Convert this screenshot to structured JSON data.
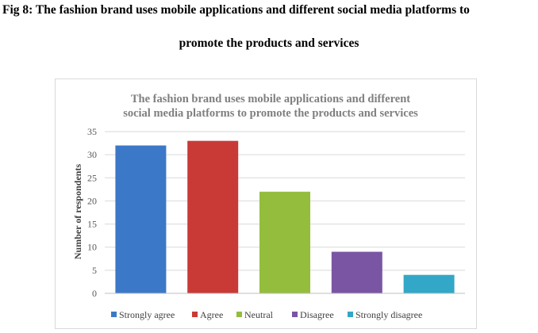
{
  "figure": {
    "caption_line1": "Fig 8: The fashion brand uses mobile applications and different social media platforms to",
    "caption_line2": "promote the products and services"
  },
  "chart_data": {
    "type": "bar",
    "title_line1": "The fashion brand uses mobile applications and different",
    "title_line2": "social media platforms to promote the products and services",
    "ylabel": "Number of respondents",
    "xlabel": "",
    "categories": [
      "Strongly agree",
      "Agree",
      "Neutral",
      "Disagree",
      "Strongly disagree"
    ],
    "values": [
      32,
      33,
      22,
      9,
      4
    ],
    "colors": [
      "#3c78c8",
      "#c93a37",
      "#94bd3e",
      "#7a55a3",
      "#33a7c7"
    ],
    "ylim": [
      0,
      35
    ],
    "yticks": [
      "0",
      "5",
      "10",
      "15",
      "20",
      "25",
      "30",
      "35"
    ],
    "grid": true,
    "legend_position": "bottom"
  }
}
